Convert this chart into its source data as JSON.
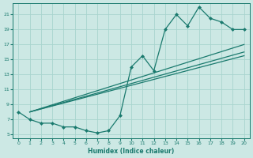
{
  "xlabel": "Humidex (Indice chaleur)",
  "bg_color": "#cce8e4",
  "grid_color": "#a8d4ce",
  "line_color": "#1a7a6e",
  "xlim": [
    -0.5,
    20.5
  ],
  "ylim": [
    4.5,
    22.5
  ],
  "xticks": [
    0,
    1,
    2,
    3,
    4,
    5,
    6,
    7,
    8,
    9,
    10,
    11,
    12,
    13,
    14,
    15,
    16,
    17,
    18,
    19,
    20
  ],
  "yticks": [
    5,
    7,
    9,
    11,
    13,
    15,
    17,
    19,
    21
  ],
  "curvy_x": [
    0,
    1,
    2,
    3,
    4,
    5,
    6,
    7,
    8,
    9,
    10,
    11,
    12,
    13,
    14,
    15,
    16,
    17,
    18,
    19,
    20
  ],
  "curvy_y": [
    8,
    7,
    6.5,
    6.5,
    6.0,
    6.0,
    5.5,
    5.2,
    5.5,
    7.5,
    14.0,
    15.5,
    13.5,
    19.0,
    21.0,
    19.5,
    22.0,
    20.5,
    20.0,
    19.0,
    19.0
  ],
  "line2_x": [
    1,
    20
  ],
  "line2_y": [
    8.0,
    17.0
  ],
  "line3_x": [
    1,
    20
  ],
  "line3_y": [
    8.0,
    16.0
  ],
  "line4_x": [
    1,
    20
  ],
  "line4_y": [
    8.0,
    15.5
  ]
}
